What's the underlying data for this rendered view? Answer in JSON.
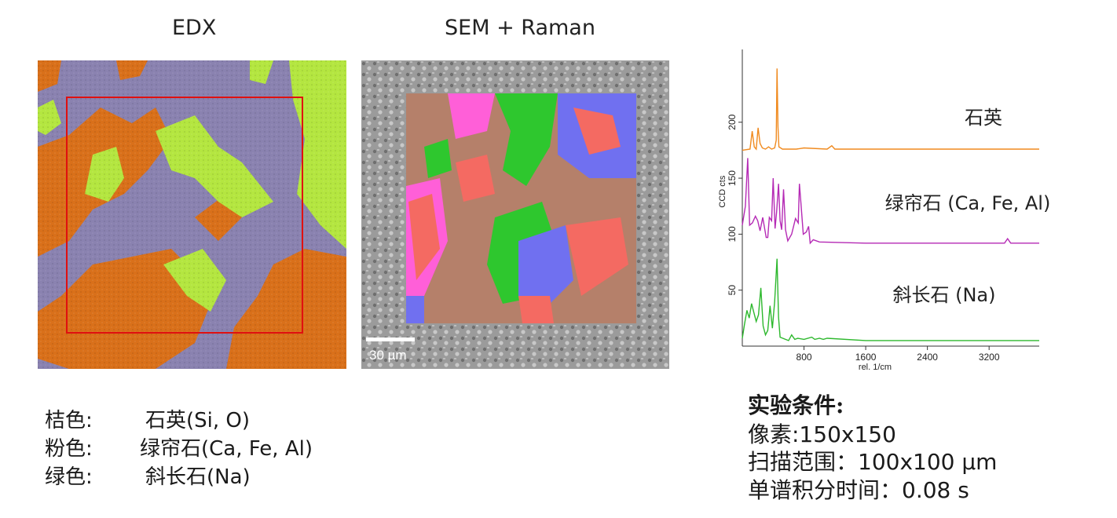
{
  "titles": {
    "edx": "EDX",
    "sem": "SEM + Raman"
  },
  "scale_bar": {
    "label": "30 µm"
  },
  "legend": [
    {
      "color_label": "桔色:",
      "mineral": "石英(Si, O)"
    },
    {
      "color_label": "粉色:",
      "mineral": "绿帘石(Ca, Fe, Al)"
    },
    {
      "color_label": "绿色:",
      "mineral": "斜长石(Na)"
    }
  ],
  "conditions": {
    "title": "实验条件:",
    "lines": [
      "像素:150x150",
      "扫描范围：100x100 µm",
      "单谱积分时间：0.08 s"
    ]
  },
  "colors": {
    "edx_orange": "#d9701a",
    "edx_purple": "#8a82b0",
    "edx_green": "#b4e640",
    "sem_brown": "#b5806a",
    "sem_pink": "#ff5fd8",
    "sem_red": "#f46a62",
    "sem_green": "#2ec72e",
    "sem_blue": "#7070f0",
    "roi_red": "#e01010",
    "spec_orange": "#f08a1e",
    "spec_magenta": "#b52ab5",
    "spec_green": "#2db82d"
  },
  "chart_data": {
    "type": "line",
    "xlabel": "rel. 1/cm",
    "ylabel": "CCD cts",
    "x_ticks": [
      800,
      1600,
      2400,
      3200
    ],
    "y_ticks": [
      50,
      100,
      150,
      200
    ],
    "xlim": [
      0,
      3850
    ],
    "ylim": [
      0,
      265
    ],
    "series": [
      {
        "name": "石英",
        "color": "#f08a1e",
        "points": [
          [
            0,
            175
          ],
          [
            100,
            176
          ],
          [
            128,
            192
          ],
          [
            155,
            178
          ],
          [
            180,
            176
          ],
          [
            205,
            195
          ],
          [
            230,
            181
          ],
          [
            260,
            177
          ],
          [
            300,
            176
          ],
          [
            340,
            178
          ],
          [
            380,
            176
          ],
          [
            420,
            177
          ],
          [
            440,
            184
          ],
          [
            450,
            248
          ],
          [
            462,
            196
          ],
          [
            475,
            178
          ],
          [
            520,
            176
          ],
          [
            700,
            176
          ],
          [
            800,
            177
          ],
          [
            1100,
            176
          ],
          [
            1160,
            179
          ],
          [
            1200,
            176
          ],
          [
            1600,
            176
          ],
          [
            2400,
            176
          ],
          [
            3850,
            176
          ]
        ]
      },
      {
        "name": "绿帘石 (Ca, Fe, Al)",
        "color": "#b52ab5",
        "points": [
          [
            0,
            108
          ],
          [
            40,
            125
          ],
          [
            70,
            168
          ],
          [
            95,
            108
          ],
          [
            130,
            110
          ],
          [
            170,
            116
          ],
          [
            200,
            112
          ],
          [
            230,
            103
          ],
          [
            265,
            115
          ],
          [
            310,
            97
          ],
          [
            330,
            97
          ],
          [
            350,
            115
          ],
          [
            380,
            112
          ],
          [
            400,
            150
          ],
          [
            425,
            105
          ],
          [
            445,
            120
          ],
          [
            470,
            145
          ],
          [
            490,
            112
          ],
          [
            510,
            104
          ],
          [
            535,
            140
          ],
          [
            560,
            104
          ],
          [
            590,
            94
          ],
          [
            640,
            100
          ],
          [
            690,
            114
          ],
          [
            725,
            110
          ],
          [
            740,
            145
          ],
          [
            760,
            128
          ],
          [
            790,
            100
          ],
          [
            830,
            102
          ],
          [
            860,
            107
          ],
          [
            880,
            92
          ],
          [
            920,
            95
          ],
          [
            1000,
            93
          ],
          [
            1600,
            92
          ],
          [
            2400,
            92
          ],
          [
            3400,
            92
          ],
          [
            3440,
            96
          ],
          [
            3480,
            92
          ],
          [
            3850,
            92
          ]
        ]
      },
      {
        "name": "斜长石 (Na)",
        "color": "#2db82d",
        "points": [
          [
            0,
            7
          ],
          [
            30,
            20
          ],
          [
            60,
            32
          ],
          [
            90,
            25
          ],
          [
            120,
            38
          ],
          [
            150,
            30
          ],
          [
            180,
            22
          ],
          [
            210,
            28
          ],
          [
            240,
            52
          ],
          [
            270,
            18
          ],
          [
            300,
            10
          ],
          [
            330,
            14
          ],
          [
            360,
            36
          ],
          [
            390,
            16
          ],
          [
            420,
            40
          ],
          [
            450,
            78
          ],
          [
            470,
            26
          ],
          [
            490,
            8
          ],
          [
            560,
            6
          ],
          [
            600,
            5
          ],
          [
            640,
            10
          ],
          [
            680,
            6
          ],
          [
            720,
            7
          ],
          [
            800,
            6
          ],
          [
            900,
            8
          ],
          [
            940,
            6
          ],
          [
            1000,
            7
          ],
          [
            1050,
            6
          ],
          [
            1100,
            7
          ],
          [
            1600,
            5
          ],
          [
            2400,
            5
          ],
          [
            3850,
            5
          ]
        ]
      }
    ],
    "annotations": [
      "石英",
      "绿帘石 (Ca, Fe, Al)",
      "斜长石 (Na)"
    ]
  }
}
